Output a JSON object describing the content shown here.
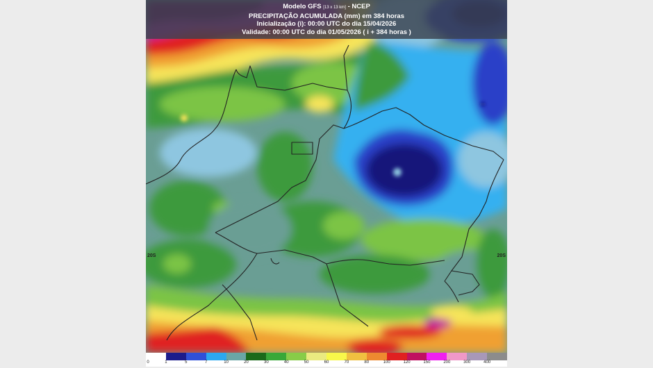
{
  "header": {
    "line1": "Modelo GFS",
    "line1_small": "[13 x 13 km]",
    "line1_suffix": "- NCEP",
    "line2": "PRECIPITAÇÃO ACUMULADA (mm) em 384 horas",
    "line3": "Inicialização (i): 00:00 UTC do dia 15/04/2026",
    "line4": "Validade: 00:00 UTC do dia 01/05/2026 ( i + 384 horas )"
  },
  "lat_labels": {
    "left": "20S",
    "right": "20S"
  },
  "legend": {
    "ticks": [
      "0",
      "1",
      "5",
      "7",
      "10",
      "20",
      "30",
      "40",
      "50",
      "60",
      "70",
      "80",
      "100",
      "120",
      "150",
      "200",
      "300",
      "400"
    ],
    "colors": [
      "#ffffff",
      "#1c1c8c",
      "#3050d8",
      "#2ca8f0",
      "#6aa6a6",
      "#1a6a1a",
      "#38a838",
      "#88cc48",
      "#eaea80",
      "#f8f84a",
      "#f0c040",
      "#ee8a30",
      "#e02020",
      "#c01060",
      "#f020f0",
      "#f098c8",
      "#a898b8",
      "#8c8c8c"
    ]
  },
  "map_colors": {
    "very_dark_blue": "#14147a",
    "dark_blue": "#2a40c8",
    "light_blue": "#36b0f0",
    "pale_blue": "#8ec6e0",
    "teal": "#6a9e94",
    "dark_green": "#1e6e24",
    "green": "#3c9a3c",
    "light_green": "#7cc444",
    "yellow": "#f6e45a",
    "orange": "#f0a030",
    "red": "#e02424",
    "purple": "#7a1060",
    "magenta": "#c020a0"
  }
}
